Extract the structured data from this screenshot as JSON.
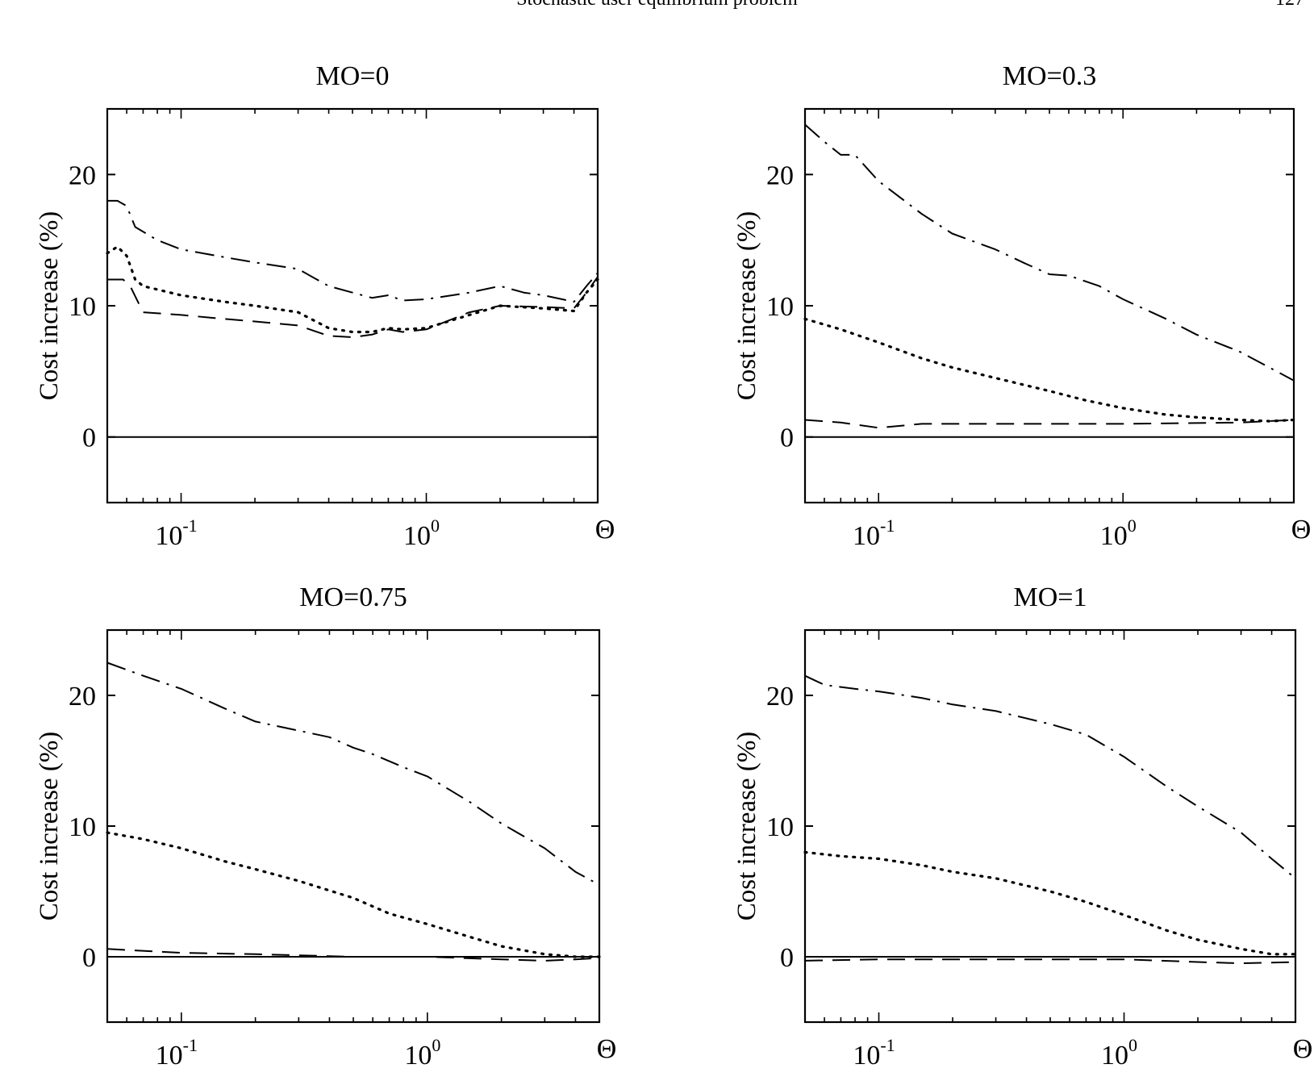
{
  "header": {
    "running_title": "Stochastic user equilibrium problem",
    "page_number": "127"
  },
  "chart_data": [
    {
      "type": "line",
      "title": "MO=0",
      "ylabel": "Cost increase (%)",
      "xlabel": "Θ",
      "xscale": "log",
      "xlim": [
        0.05,
        5
      ],
      "ylim": [
        -5,
        25
      ],
      "yticks": [
        0,
        10,
        20
      ],
      "xticks": [
        {
          "value": 0.1,
          "base": "10",
          "exp": "-1"
        },
        {
          "value": 1,
          "base": "10",
          "exp": "0"
        }
      ],
      "series": [
        {
          "style": "solid",
          "x": [
            0.05,
            5
          ],
          "y": [
            0,
            0
          ]
        },
        {
          "style": "dashdot",
          "x": [
            0.05,
            0.055,
            0.06,
            0.065,
            0.08,
            0.1,
            0.15,
            0.2,
            0.3,
            0.4,
            0.5,
            0.6,
            0.7,
            0.8,
            1.0,
            1.5,
            2.0,
            2.5,
            3.0,
            4.0,
            4.5,
            5.0
          ],
          "y": [
            18,
            18,
            17.6,
            16,
            15,
            14.3,
            13.7,
            13.3,
            12.8,
            11.5,
            11,
            10.6,
            10.8,
            10.4,
            10.5,
            11,
            11.5,
            11,
            10.8,
            10.3,
            11.5,
            12.5
          ]
        },
        {
          "style": "dotted",
          "x": [
            0.05,
            0.055,
            0.06,
            0.065,
            0.07,
            0.1,
            0.15,
            0.2,
            0.3,
            0.4,
            0.5,
            0.6,
            0.7,
            0.8,
            1.0,
            1.5,
            2.0,
            3.0,
            4.0,
            4.5,
            5.0
          ],
          "y": [
            14,
            14.5,
            13.8,
            12,
            11.5,
            10.8,
            10.3,
            10,
            9.5,
            8.3,
            8,
            8,
            8.3,
            8.2,
            8.3,
            9.3,
            10,
            9.8,
            9.6,
            11,
            12
          ]
        },
        {
          "style": "dashed",
          "x": [
            0.05,
            0.058,
            0.062,
            0.07,
            0.1,
            0.15,
            0.2,
            0.3,
            0.4,
            0.5,
            0.6,
            0.7,
            0.8,
            1.0,
            1.5,
            2.0,
            3.0,
            4.0,
            4.5,
            5.0
          ],
          "y": [
            12,
            12,
            11.5,
            9.5,
            9.3,
            9,
            8.8,
            8.5,
            7.7,
            7.6,
            7.8,
            8.2,
            8,
            8.2,
            9.5,
            10,
            9.9,
            9.8,
            11,
            12.2
          ]
        }
      ]
    },
    {
      "type": "line",
      "title": "MO=0.3",
      "ylabel": "Cost increase (%)",
      "xlabel": "Θ",
      "xscale": "log",
      "xlim": [
        0.05,
        5
      ],
      "ylim": [
        -5,
        25
      ],
      "yticks": [
        0,
        10,
        20
      ],
      "xticks": [
        {
          "value": 0.1,
          "base": "10",
          "exp": "-1"
        },
        {
          "value": 1,
          "base": "10",
          "exp": "0"
        }
      ],
      "series": [
        {
          "style": "solid",
          "x": [
            0.05,
            5
          ],
          "y": [
            0,
            0
          ]
        },
        {
          "style": "dashdot",
          "x": [
            0.05,
            0.06,
            0.07,
            0.08,
            0.1,
            0.15,
            0.2,
            0.3,
            0.4,
            0.5,
            0.6,
            0.8,
            1.0,
            1.5,
            2.0,
            3.0,
            5.0
          ],
          "y": [
            23.8,
            22.5,
            21.5,
            21.5,
            19.5,
            17,
            15.5,
            14.3,
            13.2,
            12.4,
            12.3,
            11.5,
            10.5,
            9,
            7.8,
            6.5,
            4.3
          ]
        },
        {
          "style": "dotted",
          "x": [
            0.05,
            0.07,
            0.1,
            0.15,
            0.2,
            0.3,
            0.5,
            0.7,
            1.0,
            1.5,
            2.0,
            3.0,
            4.0,
            5.0
          ],
          "y": [
            9,
            8.2,
            7.2,
            6,
            5.3,
            4.5,
            3.5,
            2.8,
            2.2,
            1.7,
            1.5,
            1.3,
            1.2,
            1.3
          ]
        },
        {
          "style": "dashed",
          "x": [
            0.05,
            0.07,
            0.1,
            0.15,
            0.3,
            1.0,
            3.0,
            5.0
          ],
          "y": [
            1.3,
            1.1,
            0.7,
            1,
            1,
            1,
            1.1,
            1.3
          ]
        }
      ]
    },
    {
      "type": "line",
      "title": "MO=0.75",
      "ylabel": "Cost increase (%)",
      "xlabel": "Θ",
      "xscale": "log",
      "xlim": [
        0.05,
        5
      ],
      "ylim": [
        -5,
        25
      ],
      "yticks": [
        0,
        10,
        20
      ],
      "xticks": [
        {
          "value": 0.1,
          "base": "10",
          "exp": "-1"
        },
        {
          "value": 1,
          "base": "10",
          "exp": "0"
        }
      ],
      "series": [
        {
          "style": "solid",
          "x": [
            0.05,
            5
          ],
          "y": [
            0,
            0
          ]
        },
        {
          "style": "dashdot",
          "x": [
            0.05,
            0.07,
            0.1,
            0.15,
            0.2,
            0.3,
            0.4,
            0.5,
            0.6,
            0.8,
            1.0,
            1.5,
            2.0,
            3.0,
            4.0,
            5.0
          ],
          "y": [
            22.5,
            21.5,
            20.5,
            19,
            18,
            17.3,
            16.8,
            16,
            15.5,
            14.5,
            13.8,
            11.8,
            10.2,
            8.3,
            6.5,
            5.5
          ]
        },
        {
          "style": "dotted",
          "x": [
            0.05,
            0.07,
            0.1,
            0.15,
            0.2,
            0.3,
            0.5,
            0.7,
            1.0,
            1.5,
            2.0,
            3.0,
            4.0,
            5.0
          ],
          "y": [
            9.5,
            9,
            8.3,
            7.3,
            6.7,
            5.8,
            4.5,
            3.3,
            2.5,
            1.5,
            0.8,
            0.2,
            0,
            0
          ]
        },
        {
          "style": "dashed",
          "x": [
            0.05,
            0.1,
            0.2,
            0.5,
            1.0,
            2.0,
            3.0,
            4.0,
            5.0
          ],
          "y": [
            0.6,
            0.3,
            0.2,
            0,
            0,
            -0.2,
            -0.3,
            -0.2,
            -0.1
          ]
        }
      ]
    },
    {
      "type": "line",
      "title": "MO=1",
      "ylabel": "Cost increase (%)",
      "xlabel": "Θ",
      "xscale": "log",
      "xlim": [
        0.05,
        5
      ],
      "ylim": [
        -5,
        25
      ],
      "yticks": [
        0,
        10,
        20
      ],
      "xticks": [
        {
          "value": 0.1,
          "base": "10",
          "exp": "-1"
        },
        {
          "value": 1,
          "base": "10",
          "exp": "0"
        }
      ],
      "series": [
        {
          "style": "solid",
          "x": [
            0.05,
            5
          ],
          "y": [
            0,
            0
          ]
        },
        {
          "style": "dashdot",
          "x": [
            0.05,
            0.06,
            0.08,
            0.1,
            0.15,
            0.2,
            0.3,
            0.5,
            0.7,
            1.0,
            1.5,
            2.0,
            3.0,
            4.0,
            5.0
          ],
          "y": [
            21.5,
            20.8,
            20.5,
            20.3,
            19.8,
            19.3,
            18.8,
            17.8,
            17,
            15.3,
            13,
            11.5,
            9.5,
            7.5,
            6
          ]
        },
        {
          "style": "dotted",
          "x": [
            0.05,
            0.07,
            0.1,
            0.15,
            0.2,
            0.3,
            0.5,
            0.7,
            1.0,
            1.5,
            2.0,
            3.0,
            4.0,
            5.0
          ],
          "y": [
            8,
            7.7,
            7.5,
            7,
            6.5,
            6,
            5,
            4.2,
            3.2,
            2,
            1.3,
            0.6,
            0.2,
            0.2
          ]
        },
        {
          "style": "dashed",
          "x": [
            0.05,
            0.1,
            0.3,
            0.5,
            1.0,
            2.0,
            3.0,
            5.0
          ],
          "y": [
            -0.3,
            -0.2,
            -0.2,
            -0.2,
            -0.2,
            -0.4,
            -0.5,
            -0.4
          ]
        }
      ]
    }
  ]
}
